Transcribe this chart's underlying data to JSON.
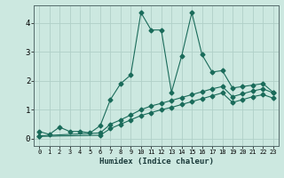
{
  "xlabel": "Humidex (Indice chaleur)",
  "bg_color": "#cce8e0",
  "line_color": "#1a6b5a",
  "grid_color": "#b0d0c8",
  "spine_color": "#556b6b",
  "xlim": [
    -0.5,
    23.5
  ],
  "ylim": [
    -0.25,
    4.6
  ],
  "x_ticks": [
    0,
    1,
    2,
    3,
    4,
    5,
    6,
    7,
    8,
    9,
    10,
    11,
    12,
    13,
    14,
    15,
    16,
    17,
    18,
    19,
    20,
    21,
    22,
    23
  ],
  "y_ticks": [
    0,
    1,
    2,
    3,
    4
  ],
  "series1_x": [
    0,
    1,
    2,
    3,
    4,
    5,
    6,
    7,
    8,
    9,
    10,
    11,
    12,
    13,
    14,
    15,
    16,
    17,
    18,
    19,
    20,
    21,
    22,
    23
  ],
  "series1_y": [
    0.25,
    0.15,
    0.4,
    0.25,
    0.25,
    0.2,
    0.45,
    1.35,
    1.9,
    2.2,
    4.35,
    3.75,
    3.75,
    1.6,
    2.85,
    4.35,
    2.9,
    2.3,
    2.35,
    1.75,
    1.8,
    1.85,
    1.9,
    1.6
  ],
  "series2_x": [
    0,
    6,
    7,
    8,
    9,
    10,
    11,
    12,
    13,
    14,
    15,
    16,
    17,
    18,
    19,
    20,
    21,
    22,
    23
  ],
  "series2_y": [
    0.1,
    0.2,
    0.5,
    0.65,
    0.82,
    1.0,
    1.13,
    1.22,
    1.32,
    1.42,
    1.52,
    1.62,
    1.72,
    1.8,
    1.45,
    1.55,
    1.65,
    1.72,
    1.58
  ],
  "series3_x": [
    0,
    6,
    7,
    8,
    9,
    10,
    11,
    12,
    13,
    14,
    15,
    16,
    17,
    18,
    19,
    20,
    21,
    22,
    23
  ],
  "series3_y": [
    0.08,
    0.12,
    0.35,
    0.5,
    0.65,
    0.8,
    0.9,
    1.0,
    1.08,
    1.18,
    1.28,
    1.38,
    1.48,
    1.58,
    1.25,
    1.35,
    1.45,
    1.52,
    1.4
  ]
}
